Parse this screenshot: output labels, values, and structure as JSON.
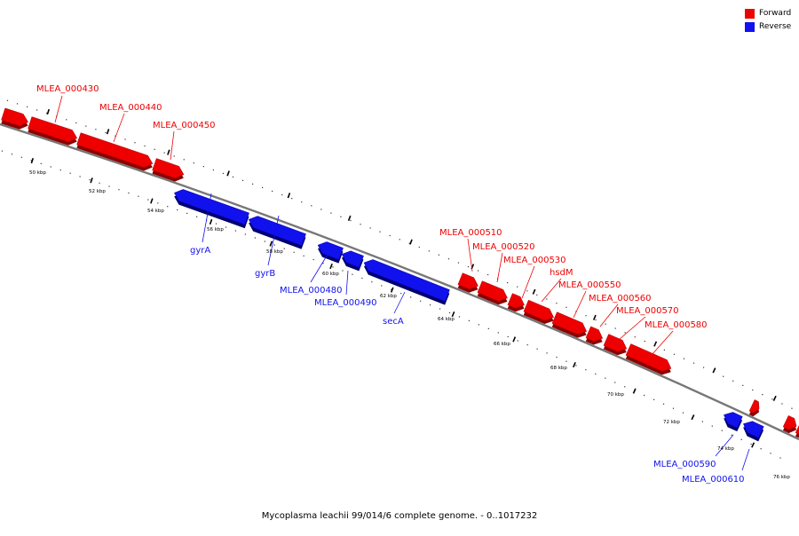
{
  "caption": "Mycoplasma leachii 99/014/6 complete genome. - 0..1017232",
  "colors": {
    "forward": "#ee0000",
    "reverse": "#1111ee",
    "backbone": "#777777"
  },
  "legend": [
    {
      "label": "Forward",
      "color": "#ee0000"
    },
    {
      "label": "Reverse",
      "color": "#1111ee"
    }
  ],
  "ruler_labels": [
    "50 kbp",
    "52 kbp",
    "54 kbp",
    "56 kbp",
    "58 kbp",
    "60 kbp",
    "62 kbp",
    "64 kbp",
    "66 kbp",
    "68 kbp",
    "70 kbp",
    "72 kbp",
    "74 kbp",
    "76 kbp"
  ],
  "gene_labels": [
    {
      "label": "MLEA_000430",
      "strand": "forward"
    },
    {
      "label": "MLEA_000440",
      "strand": "forward"
    },
    {
      "label": "MLEA_000450",
      "strand": "forward"
    },
    {
      "label": "gyrA",
      "strand": "reverse"
    },
    {
      "label": "gyrB",
      "strand": "reverse"
    },
    {
      "label": "MLEA_000480",
      "strand": "reverse"
    },
    {
      "label": "MLEA_000490",
      "strand": "reverse"
    },
    {
      "label": "secA",
      "strand": "reverse"
    },
    {
      "label": "MLEA_000510",
      "strand": "forward"
    },
    {
      "label": "MLEA_000520",
      "strand": "forward"
    },
    {
      "label": "MLEA_000530",
      "strand": "forward"
    },
    {
      "label": "hsdM",
      "strand": "forward"
    },
    {
      "label": "MLEA_000550",
      "strand": "forward"
    },
    {
      "label": "MLEA_000560",
      "strand": "forward"
    },
    {
      "label": "MLEA_000570",
      "strand": "forward"
    },
    {
      "label": "MLEA_000580",
      "strand": "forward"
    },
    {
      "label": "MLEA_000590",
      "strand": "reverse"
    },
    {
      "label": "MLEA_000610",
      "strand": "reverse"
    }
  ]
}
